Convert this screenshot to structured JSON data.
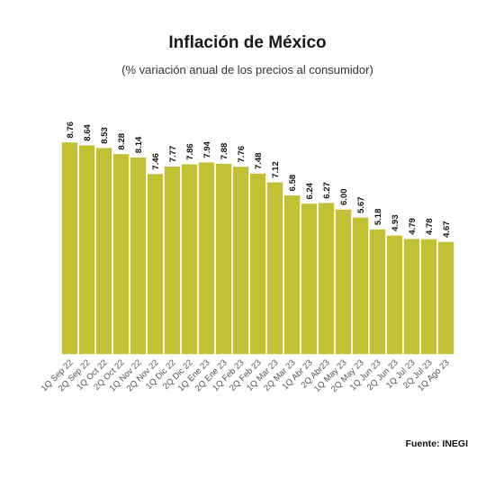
{
  "chart_data": {
    "type": "bar",
    "title": "Inflación de México",
    "subtitle": "(% variación anual de los precios al consumidor)",
    "categories": [
      "1Q Sep 22",
      "2Q Sep 22",
      "1Q Oct 22",
      "2Q Oct 22",
      "1Q Nov 22",
      "2Q Nov 22",
      "1Q Dic 22",
      "2Q Dic 22",
      "1Q Ene 23",
      "2Q Ene 23",
      "1Q Feb 23",
      "2Q Feb 23",
      "1Q Mar 23",
      "2Q Mar 23",
      "1Q Abr 23",
      "2Q Abr23",
      "1Q May 23",
      "2Q May 23",
      "1Q Jun 23",
      "2Q Jun 23",
      "1Q Jul 23",
      "2Q Jul 23",
      "1Q Ago 23"
    ],
    "values": [
      8.76,
      8.64,
      8.53,
      8.28,
      8.14,
      7.46,
      7.77,
      7.86,
      7.94,
      7.88,
      7.76,
      7.48,
      7.12,
      6.58,
      6.24,
      6.27,
      6.0,
      5.67,
      5.18,
      4.93,
      4.79,
      4.78,
      4.67
    ],
    "value_labels": [
      "8.76",
      "8.64",
      "8.53",
      "8.28",
      "8.14",
      "7.46",
      "7.77",
      "7.86",
      "7.94",
      "7.88",
      "7.76",
      "7.48",
      "7.12",
      "6.58",
      "6.24",
      "6.27",
      "6.00",
      "5.67",
      "5.18",
      "4.93",
      "4.79",
      "4.78",
      "4.67"
    ],
    "bar_color": "#c2c135",
    "grid": false,
    "legend": "none"
  },
  "source": "Fuente: INEGI"
}
